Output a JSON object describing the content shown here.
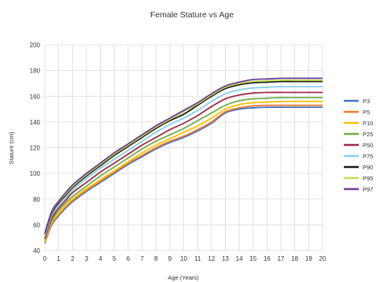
{
  "chart_data": {
    "type": "line",
    "title": "Female Stature vs Age",
    "xlabel": "Age (Years)",
    "ylabel": "Stature (cm)",
    "xlim": [
      0,
      20
    ],
    "ylim": [
      40,
      200
    ],
    "x_ticks": [
      "0",
      "1",
      "2",
      "3",
      "4",
      "5",
      "6",
      "7",
      "8",
      "9",
      "10",
      "11",
      "12",
      "13",
      "14",
      "15",
      "16",
      "17",
      "18",
      "19",
      "20"
    ],
    "y_ticks": [
      "200",
      "180",
      "160",
      "140",
      "120",
      "100",
      "80",
      "60",
      "40"
    ],
    "grid": true,
    "legend_position": "right",
    "x": [
      0,
      0.5,
      1,
      1.5,
      2,
      3,
      4,
      5,
      6,
      7,
      8,
      9,
      10,
      11,
      12,
      13,
      14,
      15,
      16,
      17,
      18,
      19,
      20
    ],
    "series": [
      {
        "name": "P3",
        "color": "#4472c4",
        "values": [
          45.6,
          60,
          67,
          73,
          78,
          86,
          93,
          100,
          107,
          113,
          119,
          124,
          128,
          133,
          139,
          147,
          150,
          151,
          151.5,
          151.5,
          151.5,
          151.5,
          151.5
        ]
      },
      {
        "name": "P5",
        "color": "#ed7d31",
        "values": [
          46.2,
          61,
          68,
          74,
          79,
          87,
          94,
          101,
          108,
          114,
          120,
          125,
          129,
          134,
          140,
          148,
          151,
          152.5,
          153,
          153,
          153,
          153,
          153
        ]
      },
      {
        "name": "P10",
        "color": "#ffc000",
        "values": [
          47,
          62,
          69,
          75,
          80,
          88,
          95,
          102,
          109,
          116,
          122,
          127,
          132,
          137,
          143,
          150,
          153.5,
          155,
          155.5,
          156,
          156,
          156,
          156
        ]
      },
      {
        "name": "P25",
        "color": "#70ad47",
        "values": [
          48.5,
          63.5,
          71,
          77,
          82,
          90,
          98,
          105,
          112,
          119,
          125,
          130,
          135,
          141,
          147,
          153,
          156.5,
          158,
          158.5,
          159,
          159,
          159,
          159
        ]
      },
      {
        "name": "P50",
        "color": "#9e2a48",
        "values": [
          49.5,
          65,
          73,
          79,
          85,
          93,
          101,
          108,
          115,
          122,
          128,
          134,
          139,
          145,
          152,
          158,
          161,
          162.5,
          163,
          163,
          163,
          163,
          163
        ]
      },
      {
        "name": "P75",
        "color": "#87ceeb",
        "values": [
          51,
          67,
          75,
          81,
          87,
          96,
          104,
          111,
          118,
          125,
          132,
          138,
          143,
          149,
          156,
          162,
          165,
          166.5,
          167,
          167.5,
          167.5,
          167.5,
          167.5
        ]
      },
      {
        "name": "P90",
        "color": "#1a1a1a",
        "values": [
          52.5,
          69,
          77,
          83,
          89,
          98,
          106,
          114,
          121,
          128,
          135,
          141,
          146,
          153,
          160,
          166,
          169,
          170.5,
          171,
          171.5,
          171.5,
          171.5,
          171.5
        ]
      },
      {
        "name": "P95",
        "color": "#c5e04a",
        "values": [
          53,
          70,
          78,
          84,
          90,
          99,
          107,
          115,
          122,
          129,
          136,
          142,
          148,
          154,
          161,
          167,
          170,
          171.5,
          172,
          172.5,
          172.5,
          172.5,
          172.5
        ]
      },
      {
        "name": "P97",
        "color": "#6a3d9a",
        "values": [
          53.5,
          70.5,
          78.5,
          85,
          91,
          100,
          108,
          116,
          123,
          130,
          137,
          143,
          149,
          155,
          162,
          168,
          171,
          173,
          173.5,
          174,
          174,
          174,
          174
        ]
      }
    ]
  }
}
